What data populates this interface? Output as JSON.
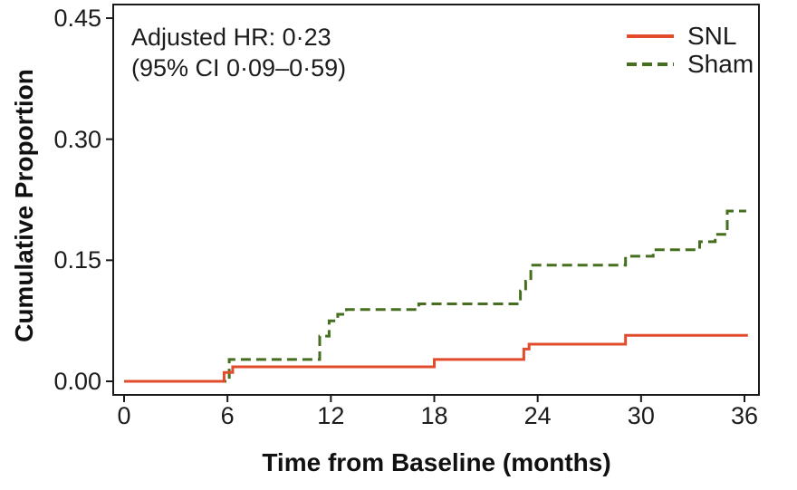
{
  "figure": {
    "annotation_line1": "Adjusted HR: 0·23",
    "annotation_line2": "(95% CI 0·09–0·59)",
    "x_axis_title": "Time from Baseline (months)",
    "y_axis_title": "Cumulative Proportion"
  },
  "legend": {
    "items": [
      {
        "label": "SNL",
        "color": "#e24b2c",
        "style": "solid"
      },
      {
        "label": "Sham",
        "color": "#456f1f",
        "style": "dashed"
      }
    ]
  },
  "chart_data": {
    "type": "line",
    "subtype": "step-post",
    "title": "",
    "xlabel": "Time from Baseline (months)",
    "ylabel": "Cumulative Proportion",
    "annotation": "Adjusted HR: 0·23 (95% CI 0·09–0·59)",
    "x_ticks": [
      0,
      6,
      12,
      18,
      24,
      30,
      36
    ],
    "y_tick_labels": [
      "0.00",
      "0.15",
      "0.30",
      "0.45"
    ],
    "y_tick_values": [
      0,
      0.15,
      0.3,
      0.45
    ],
    "xlim": [
      -0.6,
      36.9
    ],
    "ylim": [
      -0.017,
      0.468
    ],
    "grid": false,
    "legend_position": "top-right",
    "frame": "full-box",
    "series": [
      {
        "name": "Sham",
        "color": "#456f1f",
        "line_style": "dashed",
        "end_x": 36.1,
        "steps": [
          [
            0,
            0
          ],
          [
            6.1,
            0.027
          ],
          [
            11.35,
            0.056
          ],
          [
            11.9,
            0.075
          ],
          [
            12.4,
            0.083
          ],
          [
            12.9,
            0.089
          ],
          [
            17.1,
            0.096
          ],
          [
            23.0,
            0.112
          ],
          [
            23.3,
            0.124
          ],
          [
            23.6,
            0.144
          ],
          [
            29.1,
            0.155
          ],
          [
            30.7,
            0.163
          ],
          [
            33.4,
            0.173
          ],
          [
            34.3,
            0.182
          ],
          [
            35.0,
            0.211
          ]
        ]
      },
      {
        "name": "SNL",
        "color": "#e24b2c",
        "line_style": "solid",
        "end_x": 36.2,
        "steps": [
          [
            0,
            0
          ],
          [
            5.8,
            0.011
          ],
          [
            6.3,
            0.018
          ],
          [
            18.0,
            0.027
          ],
          [
            23.2,
            0.04
          ],
          [
            23.5,
            0.046
          ],
          [
            29.1,
            0.057
          ]
        ]
      }
    ]
  }
}
